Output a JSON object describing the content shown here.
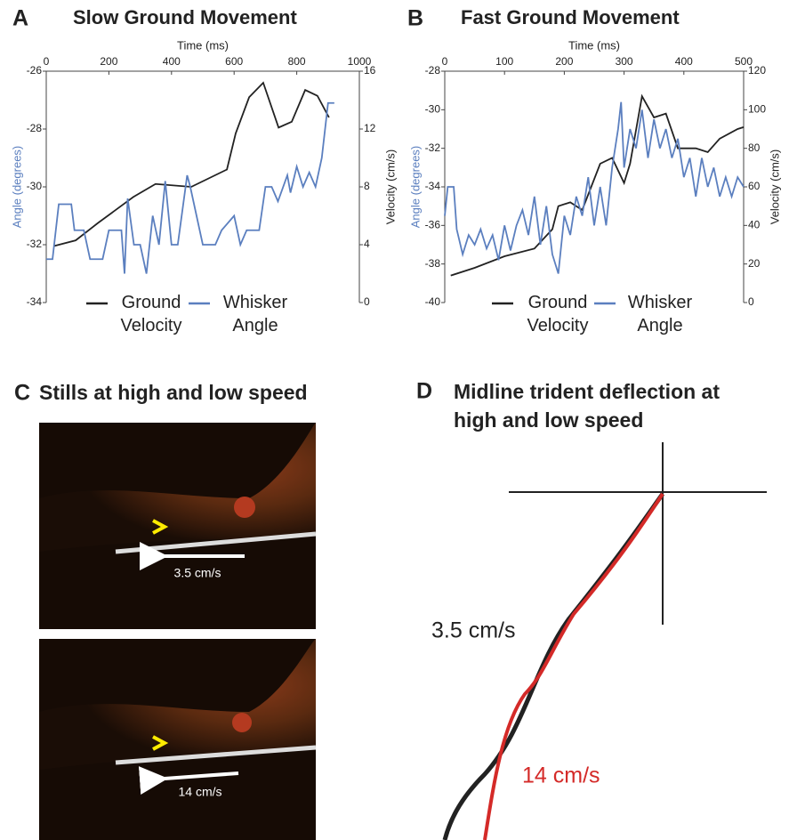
{
  "chart_data": [
    {
      "type": "line",
      "panel": "A",
      "title": "Slow Ground Movement",
      "xlabel": "Time (ms)",
      "ylabel": "Angle (degrees)",
      "y2label": "Velocity (cm/s)",
      "xlim": [
        0,
        1000
      ],
      "xticks": [
        0,
        200,
        400,
        600,
        800,
        1000
      ],
      "ylim": [
        -34,
        -26
      ],
      "yticks": [
        -34,
        -32,
        -30,
        -28,
        -26
      ],
      "y2lim": [
        0,
        16
      ],
      "y2ticks": [
        0,
        4,
        8,
        12,
        16
      ],
      "series": [
        {
          "name": "Ground Velocity",
          "color": "#222222",
          "axis": "y2",
          "x": [
            23,
            94,
            165,
            278,
            349,
            463,
            577,
            605,
            648,
            693,
            742,
            784,
            827,
            866,
            903
          ],
          "values": [
            3.9,
            4.3,
            5.5,
            7.3,
            8.2,
            8.0,
            9.2,
            11.7,
            14.2,
            15.2,
            12.1,
            12.5,
            14.7,
            14.3,
            12.8
          ]
        },
        {
          "name": "Whisker Angle",
          "color": "#5b7fbf",
          "axis": "y",
          "x": [
            0,
            20,
            40,
            80,
            90,
            120,
            140,
            180,
            200,
            240,
            250,
            260,
            280,
            300,
            320,
            340,
            360,
            380,
            400,
            420,
            450,
            460,
            480,
            500,
            540,
            560,
            600,
            620,
            640,
            680,
            700,
            720,
            740,
            770,
            780,
            800,
            820,
            840,
            860,
            880,
            900,
            920
          ],
          "values": [
            -32.5,
            -32.5,
            -30.6,
            -30.6,
            -31.5,
            -31.5,
            -32.5,
            -32.5,
            -31.5,
            -31.5,
            -33,
            -30.4,
            -32,
            -32,
            -33,
            -31,
            -32,
            -29.8,
            -32,
            -32,
            -29.6,
            -30,
            -31,
            -32,
            -32,
            -31.5,
            -31,
            -32,
            -31.5,
            -31.5,
            -30,
            -30,
            -30.5,
            -29.6,
            -30.2,
            -29.3,
            -30,
            -29.5,
            -30,
            -29,
            -27.1,
            -27.1
          ]
        }
      ]
    },
    {
      "type": "line",
      "panel": "B",
      "title": "Fast Ground Movement",
      "xlabel": "Time (ms)",
      "ylabel": "Angle (degrees)",
      "y2label": "Velocity (cm/s)",
      "xlim": [
        0,
        500
      ],
      "xticks": [
        0,
        100,
        200,
        300,
        400,
        500
      ],
      "ylim": [
        -40,
        -28
      ],
      "yticks": [
        -40,
        -38,
        -36,
        -34,
        -32,
        -30,
        -28
      ],
      "y2lim": [
        0,
        120
      ],
      "y2ticks": [
        0,
        20,
        40,
        60,
        80,
        100,
        120
      ],
      "series": [
        {
          "name": "Ground Velocity",
          "color": "#222222",
          "axis": "y2",
          "x": [
            10,
            50,
            100,
            150,
            180,
            190,
            210,
            230,
            260,
            280,
            300,
            310,
            330,
            350,
            370,
            390,
            420,
            440,
            460,
            490,
            500
          ],
          "values": [
            14,
            18,
            24,
            28,
            38,
            50,
            52,
            48,
            72,
            75,
            62,
            72,
            107,
            96,
            98,
            80,
            80,
            78,
            85,
            90,
            91
          ]
        },
        {
          "name": "Whisker Angle",
          "color": "#5b7fbf",
          "axis": "y",
          "x": [
            0,
            5,
            15,
            20,
            30,
            40,
            50,
            60,
            70,
            80,
            90,
            100,
            110,
            120,
            130,
            140,
            150,
            160,
            170,
            180,
            190,
            200,
            210,
            220,
            230,
            240,
            250,
            260,
            270,
            280,
            290,
            295,
            300,
            310,
            320,
            330,
            340,
            350,
            360,
            370,
            380,
            390,
            400,
            410,
            420,
            430,
            440,
            450,
            460,
            470,
            480,
            490,
            500
          ],
          "values": [
            -35.5,
            -34,
            -34,
            -36.2,
            -37.5,
            -36.5,
            -37,
            -36.2,
            -37.2,
            -36.5,
            -37.8,
            -36,
            -37.3,
            -36,
            -35.2,
            -36.5,
            -34.5,
            -37,
            -35,
            -37.5,
            -38.5,
            -35.5,
            -36.5,
            -34.5,
            -35.5,
            -33.5,
            -36,
            -34,
            -36,
            -33,
            -31,
            -29.6,
            -33,
            -31,
            -32,
            -30,
            -32.5,
            -30.5,
            -32,
            -31,
            -32.5,
            -31.5,
            -33.5,
            -32.5,
            -34.5,
            -32.5,
            -34,
            -33,
            -34.5,
            -33.5,
            -34.5,
            -33.5,
            -34
          ]
        }
      ]
    }
  ],
  "stills": {
    "panel": "C",
    "title": "Stills at high and low speed",
    "labels": [
      "3.5 cm/s",
      "14 cm/s"
    ]
  },
  "trident": {
    "panel": "D",
    "title": "Midline trident deflection at high and low speed",
    "labels": [
      "3.5 cm/s",
      "14 cm/s"
    ]
  }
}
